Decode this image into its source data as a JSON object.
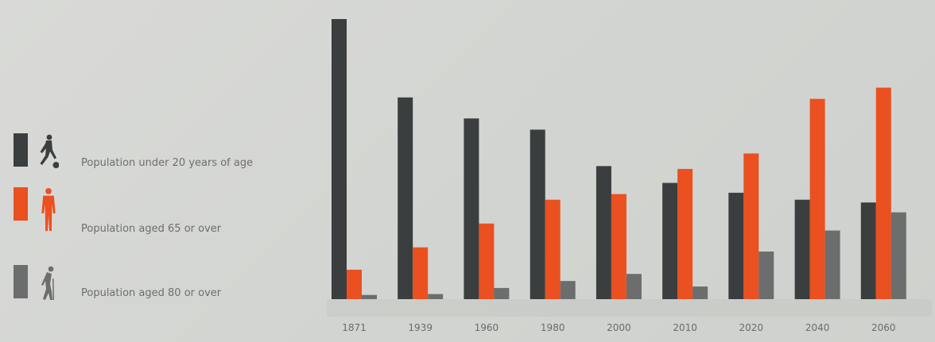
{
  "colors": {
    "under20": "#3b3e3f",
    "aged65": "#ea5020",
    "aged80": "#6c6e6e",
    "background": "#d4d6d3",
    "text": "#6d6f6d"
  },
  "legend": {
    "items": [
      {
        "label": "Population under 20 years of age",
        "color": "#3b3e3f",
        "icon": "child-kicking-ball-icon"
      },
      {
        "label": "Population aged 65 or over",
        "color": "#ea5020",
        "icon": "standing-adult-icon"
      },
      {
        "label": "Population aged 80 or over",
        "color": "#6c6e6e",
        "icon": "elderly-walking-icon"
      }
    ]
  },
  "chart_data": {
    "type": "bar",
    "categories": [
      "1871",
      "1939",
      "1960",
      "1980",
      "2000",
      "2010",
      "2020",
      "2040",
      "2060"
    ],
    "series": [
      {
        "name": "Population under 20 years of age",
        "values": [
          100,
          72,
          64.5,
          60.5,
          47.5,
          41.5,
          38,
          35.5,
          34.5
        ]
      },
      {
        "name": "Population aged 65 or over",
        "values": [
          10.5,
          18.5,
          27,
          35.5,
          37.5,
          46.5,
          52,
          71.5,
          75.5
        ]
      },
      {
        "name": "Population aged 80 or over",
        "values": [
          1.5,
          1.8,
          4,
          6.5,
          9,
          4.5,
          17,
          24.5,
          31
        ]
      }
    ],
    "ylim": [
      0,
      100
    ],
    "grid": false,
    "legend_position": "left",
    "title": "",
    "xlabel": "",
    "ylabel": ""
  }
}
